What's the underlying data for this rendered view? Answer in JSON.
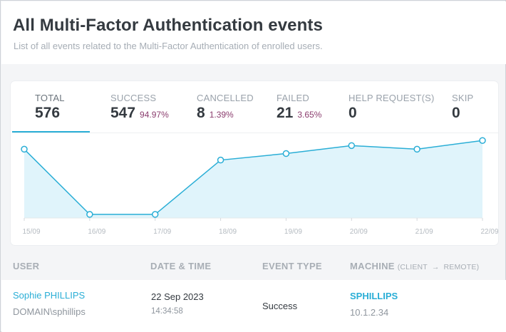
{
  "header": {
    "title": "All Multi-Factor Authentication events",
    "subtitle": "List of all events related to the Multi-Factor Authentication of enrolled users."
  },
  "stats": [
    {
      "label": "TOTAL",
      "value": "576",
      "pct": ""
    },
    {
      "label": "SUCCESS",
      "value": "547",
      "pct": "94.97%"
    },
    {
      "label": "CANCELLED",
      "value": "8",
      "pct": "1.39%"
    },
    {
      "label": "FAILED",
      "value": "21",
      "pct": "3.65%"
    },
    {
      "label": "HELP REQUEST(S)",
      "value": "0",
      "pct": ""
    },
    {
      "label": "SKIP",
      "value": "0",
      "pct": ""
    }
  ],
  "chart_data": {
    "type": "area",
    "categories": [
      "15/09",
      "16/09",
      "17/09",
      "18/09",
      "19/09",
      "20/09",
      "21/09",
      "22/09"
    ],
    "values": [
      95,
      5,
      5,
      80,
      89,
      100,
      95,
      107
    ],
    "ylim": [
      0,
      120
    ],
    "grid": false,
    "line_color": "#2aaed6",
    "fill_color": "#d6f0fa"
  },
  "table": {
    "headers": {
      "user": "USER",
      "datetime": "DATE & TIME",
      "event_type": "EVENT TYPE",
      "machine": "MACHINE",
      "machine_client": "(CLIENT",
      "machine_arrow": "→",
      "machine_remote": "REMOTE)"
    },
    "rows": [
      {
        "user_name": "Sophie PHILLIPS",
        "user_account": "DOMAIN\\sphillips",
        "date": "22 Sep 2023",
        "time": "14:34:58",
        "event_type": "Success",
        "machine_name": "SPHILLIPS",
        "machine_ip": "10.1.2.34"
      }
    ]
  }
}
